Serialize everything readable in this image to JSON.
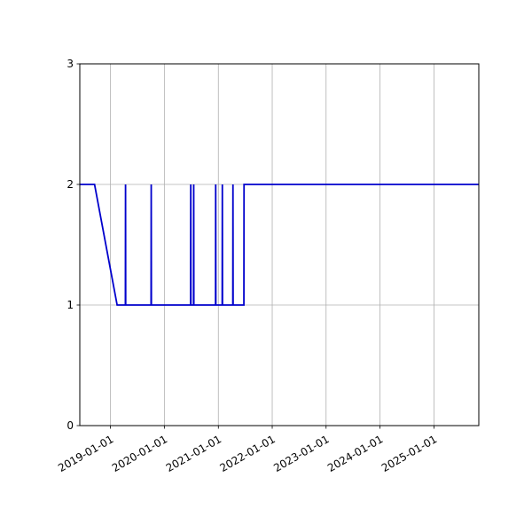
{
  "chart_data": {
    "type": "line",
    "title": "",
    "xlabel": "",
    "ylabel": "",
    "xlim": [
      "2018-06-07",
      "2025-11-01"
    ],
    "ylim": [
      0,
      3
    ],
    "xticks": [
      "2019-01-01",
      "2020-01-01",
      "2021-01-01",
      "2022-01-01",
      "2023-01-01",
      "2024-01-01",
      "2025-01-01"
    ],
    "yticks": [
      0,
      1,
      2,
      3
    ],
    "grid": true,
    "legend": "none",
    "series": [
      {
        "color": "#0000cc",
        "points": [
          [
            "2018-06-07",
            2
          ],
          [
            "2018-09-15",
            2
          ],
          [
            "2019-02-15",
            1
          ],
          [
            "2019-04-12",
            1
          ],
          [
            "2019-04-13",
            2
          ],
          [
            "2019-04-14",
            1
          ],
          [
            "2019-10-03",
            1
          ],
          [
            "2019-10-04",
            2
          ],
          [
            "2019-10-05",
            1
          ],
          [
            "2020-06-27",
            1
          ],
          [
            "2020-06-28",
            2
          ],
          [
            "2020-06-29",
            1
          ],
          [
            "2020-07-17",
            1
          ],
          [
            "2020-07-18",
            2
          ],
          [
            "2020-07-19",
            1
          ],
          [
            "2020-12-13",
            1
          ],
          [
            "2020-12-14",
            2
          ],
          [
            "2020-12-15",
            1
          ],
          [
            "2021-01-27",
            1
          ],
          [
            "2021-01-28",
            2
          ],
          [
            "2021-01-29",
            1
          ],
          [
            "2021-04-09",
            1
          ],
          [
            "2021-04-10",
            2
          ],
          [
            "2021-04-11",
            1
          ],
          [
            "2021-06-23",
            1
          ],
          [
            "2021-06-24",
            2
          ],
          [
            "2025-11-01",
            2
          ]
        ]
      }
    ]
  }
}
